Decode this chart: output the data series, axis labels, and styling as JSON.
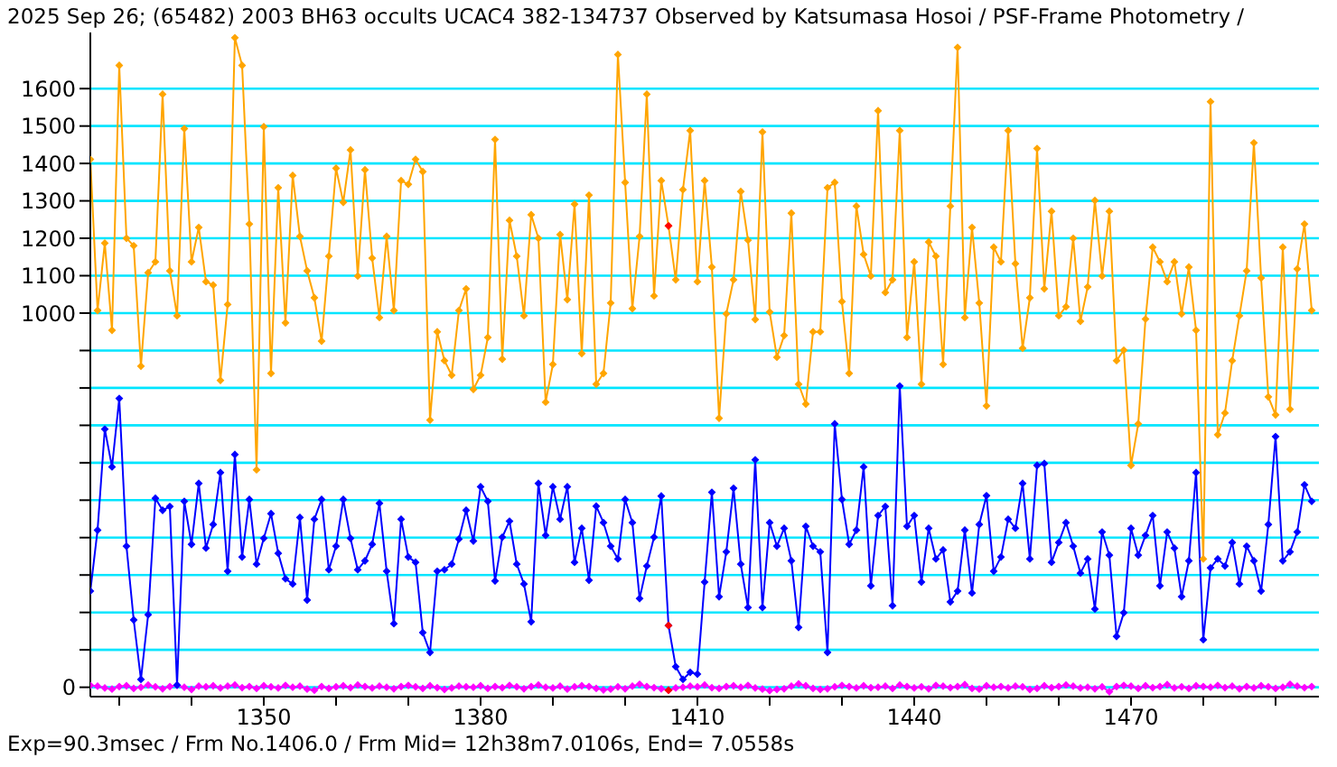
{
  "chart_data": {
    "type": "line",
    "title": "2025 Sep 26; (65482) 2003 BH63 occults UCAC4 382-134737 Observed by Katsumasa Hosoi / PSF-Frame Photometry /",
    "annotations": [
      "Exp=90.3msec / Frm No.1406.0 / Frm Mid= 12h38m7.0106s,  End= 7.0558s"
    ],
    "x": [
      1326,
      1327,
      1328,
      1329,
      1330,
      1331,
      1332,
      1333,
      1334,
      1335,
      1336,
      1337,
      1338,
      1339,
      1340,
      1341,
      1342,
      1343,
      1344,
      1345,
      1346,
      1347,
      1348,
      1349,
      1350,
      1351,
      1352,
      1353,
      1354,
      1355,
      1356,
      1357,
      1358,
      1359,
      1360,
      1361,
      1362,
      1363,
      1364,
      1365,
      1366,
      1367,
      1368,
      1369,
      1370,
      1371,
      1372,
      1373,
      1374,
      1375,
      1376,
      1377,
      1378,
      1379,
      1380,
      1381,
      1382,
      1383,
      1384,
      1385,
      1386,
      1387,
      1388,
      1389,
      1390,
      1391,
      1392,
      1393,
      1394,
      1395,
      1396,
      1397,
      1398,
      1399,
      1400,
      1401,
      1402,
      1403,
      1404,
      1405,
      1406,
      1407,
      1408,
      1409,
      1410,
      1411,
      1412,
      1413,
      1414,
      1415,
      1416,
      1417,
      1418,
      1419,
      1420,
      1421,
      1422,
      1423,
      1424,
      1425,
      1426,
      1427,
      1428,
      1429,
      1430,
      1431,
      1432,
      1433,
      1434,
      1435,
      1436,
      1437,
      1438,
      1439,
      1440,
      1441,
      1442,
      1443,
      1444,
      1445,
      1446,
      1447,
      1448,
      1449,
      1450,
      1451,
      1452,
      1453,
      1454,
      1455,
      1456,
      1457,
      1458,
      1459,
      1460,
      1461,
      1462,
      1463,
      1464,
      1465,
      1466,
      1467,
      1468,
      1469,
      1470,
      1471,
      1472,
      1473,
      1474,
      1475,
      1476,
      1477,
      1478,
      1479,
      1480,
      1481,
      1482,
      1483,
      1484,
      1485,
      1486,
      1487,
      1488,
      1489,
      1490,
      1491,
      1492,
      1493,
      1494,
      1495
    ],
    "series": [
      {
        "color": "#ffa500",
        "values": [
          1411,
          1007,
          1187,
          954,
          1662,
          1200,
          1180,
          858,
          1108,
          1137,
          1585,
          1113,
          993,
          1493,
          1137,
          1229,
          1084,
          1075,
          820,
          1023,
          1736,
          1662,
          1238,
          581,
          1498,
          839,
          1335,
          974,
          1368,
          1205,
          1113,
          1041,
          925,
          1152,
          1387,
          1296,
          1436,
          1099,
          1383,
          1147,
          988,
          1205,
          1007,
          1354,
          1344,
          1411,
          1378,
          714,
          950,
          873,
          834,
          1007,
          1065,
          796,
          834,
          935,
          1464,
          877,
          1248,
          1152,
          993,
          1263,
          1200,
          762,
          863,
          1210,
          1036,
          1291,
          892,
          1315,
          810,
          839,
          1027,
          1691,
          1349,
          1012,
          1205,
          1585,
          1046,
          1354,
          1233,
          1089,
          1330,
          1488,
          1084,
          1354,
          1123,
          719,
          998,
          1089,
          1325,
          1195,
          983,
          1484,
          1003,
          882,
          940,
          1267,
          810,
          757,
          950,
          950,
          1335,
          1349,
          1031,
          839,
          1286,
          1157,
          1099,
          1541,
          1055,
          1089,
          1488,
          935,
          1137,
          810,
          1190,
          1152,
          863,
          1286,
          1710,
          988,
          1229,
          1027,
          752,
          1176,
          1137,
          1488,
          1132,
          906,
          1041,
          1440,
          1065,
          1272,
          993,
          1017,
          1200,
          978,
          1070,
          1301,
          1099,
          1272,
          873,
          901,
          593,
          704,
          984,
          1176,
          1137,
          1084,
          1137,
          998,
          1123,
          954,
          343,
          1565,
          675,
          733,
          873,
          993,
          1113,
          1455,
          1094,
          776,
          728,
          1176,
          743,
          1118,
          1238,
          1007
        ]
      },
      {
        "color": "#0000ff",
        "values": [
          257,
          420,
          690,
          589,
          772,
          377,
          180,
          21,
          194,
          505,
          473,
          483,
          6,
          497,
          382,
          545,
          372,
          435,
          574,
          310,
          622,
          348,
          502,
          329,
          398,
          464,
          358,
          290,
          276,
          454,
          233,
          449,
          502,
          314,
          377,
          502,
          398,
          314,
          338,
          382,
          492,
          310,
          170,
          449,
          348,
          334,
          146,
          93,
          310,
          314,
          329,
          396,
          473,
          391,
          536,
          497,
          284,
          401,
          444,
          329,
          276,
          175,
          545,
          406,
          536,
          449,
          536,
          334,
          425,
          286,
          484,
          440,
          377,
          343,
          502,
          440,
          237,
          324,
          401,
          511,
          165,
          55,
          21,
          40,
          35,
          281,
          521,
          242,
          362,
          532,
          329,
          213,
          608,
          213,
          440,
          377,
          425,
          338,
          160,
          430,
          377,
          362,
          93,
          704,
          502,
          382,
          420,
          589,
          271,
          459,
          483,
          218,
          805,
          430,
          459,
          281,
          425,
          343,
          367,
          228,
          257,
          420,
          252,
          435,
          512,
          310,
          348,
          449,
          425,
          545,
          343,
          593,
          598,
          334,
          387,
          440,
          377,
          305,
          343,
          209,
          415,
          353,
          136,
          199,
          425,
          353,
          406,
          459,
          271,
          415,
          372,
          242,
          338,
          574,
          127,
          319,
          343,
          324,
          387,
          276,
          377,
          338,
          257,
          435,
          670,
          338,
          362,
          415,
          541,
          497
        ]
      },
      {
        "color": "#ff00ff",
        "values": [
          5,
          3,
          -2,
          -5,
          2,
          4,
          -3,
          0,
          6,
          1,
          -4,
          2,
          5,
          0,
          -6,
          3,
          1,
          4,
          -2,
          3,
          6,
          -1,
          2,
          -3,
          4,
          1,
          -2,
          5,
          0,
          3,
          -5,
          -8,
          2,
          -3,
          1,
          4,
          -1,
          6,
          2,
          -2,
          3,
          0,
          -4,
          2,
          5,
          1,
          -3,
          4,
          -1,
          -6,
          -2,
          3,
          1,
          0,
          4,
          -3,
          2,
          -1,
          5,
          1,
          -4,
          2,
          6,
          0,
          -2,
          3,
          -5,
          1,
          4,
          2,
          -3,
          -7,
          -5,
          1,
          -4,
          3,
          8,
          2,
          -1,
          -4,
          -8,
          -2,
          0,
          3,
          1,
          6,
          -1,
          -3,
          2,
          4,
          0,
          5,
          -2,
          -5,
          -9,
          -6,
          -4,
          3,
          9,
          4,
          -3,
          -6,
          -4,
          1,
          5,
          2,
          -2,
          4,
          -1,
          0,
          3,
          -3,
          6,
          2,
          -2,
          1,
          -4,
          5,
          3,
          -1,
          2,
          7,
          -3,
          -5,
          4,
          0,
          2,
          -2,
          3,
          1,
          -6,
          -3,
          4,
          -1,
          2,
          6,
          3,
          -2,
          0,
          -4,
          1,
          -12,
          2,
          5,
          3,
          -3,
          4,
          -1,
          2,
          7,
          -2,
          1,
          -3,
          4,
          2,
          0,
          5,
          -1,
          3,
          -4,
          2,
          -2,
          4,
          1,
          -3,
          0,
          8,
          3,
          -1,
          2
        ]
      },
      {
        "type": "scatter",
        "color": "#ff0000",
        "values": [
          null,
          null,
          null,
          null,
          null,
          null,
          null,
          null,
          null,
          null,
          null,
          null,
          null,
          null,
          null,
          null,
          null,
          null,
          null,
          null,
          null,
          null,
          null,
          null,
          null,
          null,
          null,
          null,
          null,
          null,
          null,
          null,
          null,
          null,
          null,
          null,
          null,
          null,
          null,
          null,
          null,
          null,
          null,
          null,
          null,
          null,
          null,
          null,
          null,
          null,
          null,
          null,
          null,
          null,
          null,
          null,
          null,
          null,
          null,
          null,
          null,
          null,
          null,
          null,
          null,
          null,
          null,
          null,
          null,
          null,
          null,
          null,
          null,
          null,
          null,
          null,
          null,
          null,
          null,
          null,
          1233,
          null,
          null,
          null,
          null,
          null,
          null,
          null,
          null,
          null,
          null,
          null,
          null,
          null,
          null,
          null,
          null,
          null,
          null,
          null,
          null,
          null,
          null,
          null,
          null,
          null,
          null,
          null,
          null,
          null,
          null,
          null,
          null,
          null,
          null,
          null,
          null,
          null,
          null,
          null,
          null,
          null,
          null,
          null,
          null,
          null,
          null,
          null,
          null,
          null,
          null,
          null,
          null,
          null,
          null,
          null,
          null,
          null,
          null,
          null,
          null,
          null,
          null,
          null,
          null,
          null,
          null,
          null,
          null,
          null,
          null,
          null,
          null,
          null,
          null,
          null,
          null,
          null,
          null,
          null,
          null,
          null,
          null,
          null,
          null,
          null,
          null,
          null,
          null,
          null
        ]
      },
      {
        "type": "scatter",
        "color": "#ff0000",
        "values": [
          null,
          null,
          null,
          null,
          null,
          null,
          null,
          null,
          null,
          null,
          null,
          null,
          null,
          null,
          null,
          null,
          null,
          null,
          null,
          null,
          null,
          null,
          null,
          null,
          null,
          null,
          null,
          null,
          null,
          null,
          null,
          null,
          null,
          null,
          null,
          null,
          null,
          null,
          null,
          null,
          null,
          null,
          null,
          null,
          null,
          null,
          null,
          null,
          null,
          null,
          null,
          null,
          null,
          null,
          null,
          null,
          null,
          null,
          null,
          null,
          null,
          null,
          null,
          null,
          null,
          null,
          null,
          null,
          null,
          null,
          null,
          null,
          null,
          null,
          null,
          null,
          null,
          null,
          null,
          null,
          165,
          null,
          null,
          null,
          null,
          null,
          null,
          null,
          null,
          null,
          null,
          null,
          null,
          null,
          null,
          null,
          null,
          null,
          null,
          null,
          null,
          null,
          null,
          null,
          null,
          null,
          null,
          null,
          null,
          null,
          null,
          null,
          null,
          null,
          null,
          null,
          null,
          null,
          null,
          null,
          null,
          null,
          null,
          null,
          null,
          null,
          null,
          null,
          null,
          null,
          null,
          null,
          null,
          null,
          null,
          null,
          null,
          null,
          null,
          null,
          null,
          null,
          null,
          null,
          null,
          null,
          null,
          null,
          null,
          null,
          null,
          null,
          null,
          null,
          null,
          null,
          null,
          null,
          null,
          null,
          null,
          null,
          null,
          null,
          null,
          null,
          null,
          null,
          null,
          null
        ]
      },
      {
        "type": "scatter",
        "color": "#ff0000",
        "values": [
          null,
          null,
          null,
          null,
          null,
          null,
          null,
          null,
          null,
          null,
          null,
          null,
          null,
          null,
          null,
          null,
          null,
          null,
          null,
          null,
          null,
          null,
          null,
          null,
          null,
          null,
          null,
          null,
          null,
          null,
          null,
          null,
          null,
          null,
          null,
          null,
          null,
          null,
          null,
          null,
          null,
          null,
          null,
          null,
          null,
          null,
          null,
          null,
          null,
          null,
          null,
          null,
          null,
          null,
          null,
          null,
          null,
          null,
          null,
          null,
          null,
          null,
          null,
          null,
          null,
          null,
          null,
          null,
          null,
          null,
          null,
          null,
          null,
          null,
          null,
          null,
          null,
          null,
          null,
          null,
          -8,
          null,
          null,
          null,
          null,
          null,
          null,
          null,
          null,
          null,
          null,
          null,
          null,
          null,
          null,
          null,
          null,
          null,
          null,
          null,
          null,
          null,
          null,
          null,
          null,
          null,
          null,
          null,
          null,
          null,
          null,
          null,
          null,
          null,
          null,
          null,
          null,
          null,
          null,
          null,
          null,
          null,
          null,
          null,
          null,
          null,
          null,
          null,
          null,
          null,
          null,
          null,
          null,
          null,
          null,
          null,
          null,
          null,
          null,
          null,
          null,
          null,
          null,
          null,
          null,
          null,
          null,
          null,
          null,
          null,
          null,
          null,
          null,
          null,
          null,
          null,
          null,
          null,
          null,
          null,
          null,
          null,
          null,
          null,
          null,
          null,
          null,
          null,
          null,
          null
        ]
      }
    ],
    "xlim": [
      1326,
      1496
    ],
    "xticks": [
      {
        "value": 1330,
        "label": null
      },
      {
        "value": 1340,
        "label": null
      },
      1350,
      {
        "value": 1360,
        "label": null
      },
      {
        "value": 1370,
        "label": null
      },
      1380,
      {
        "value": 1390,
        "label": null
      },
      {
        "value": 1400,
        "label": null
      },
      1410,
      {
        "value": 1420,
        "label": null
      },
      {
        "value": 1430,
        "label": null
      },
      1440,
      {
        "value": 1450,
        "label": null
      },
      {
        "value": 1460,
        "label": null
      },
      1470,
      {
        "value": 1480,
        "label": null
      },
      {
        "value": 1490,
        "label": null
      }
    ],
    "ylim": [
      -25,
      1750
    ],
    "yticks": [
      0,
      {
        "value": 100,
        "label": null
      },
      {
        "value": 200,
        "label": null
      },
      {
        "value": 300,
        "label": null
      },
      {
        "value": 400,
        "label": null
      },
      {
        "value": 500,
        "label": null
      },
      {
        "value": 600,
        "label": null
      },
      {
        "value": 700,
        "label": null
      },
      {
        "value": 800,
        "label": null
      },
      {
        "value": 900,
        "label": null
      },
      1000,
      1100,
      1200,
      1300,
      1400,
      1500,
      1600
    ],
    "grid": "y",
    "marker": "diamond",
    "line_style": "solid"
  }
}
